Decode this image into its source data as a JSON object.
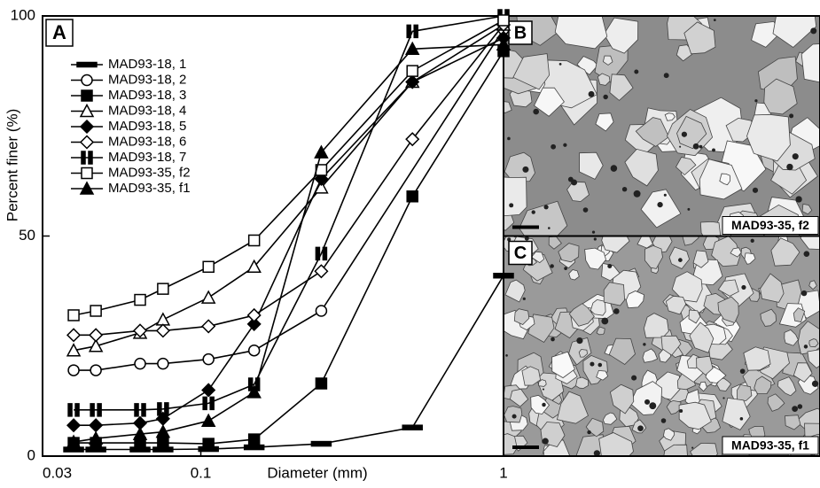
{
  "chart_data": {
    "type": "line",
    "panel_label": "A",
    "xlabel": "Diameter (mm)",
    "ylabel": "Percent finer (%)",
    "xscale": "log",
    "xlim": [
      0.03,
      1
    ],
    "xticks": [
      0.03,
      0.1,
      1
    ],
    "ylim": [
      0,
      100
    ],
    "yticks": [
      0,
      50,
      100
    ],
    "legend": "upper left",
    "series": [
      {
        "name": "MAD93-18, 1",
        "marker": "dash",
        "color": "#000",
        "x": [
          0.038,
          0.045,
          0.063,
          0.075,
          0.106,
          0.15,
          0.25,
          0.5,
          1
        ],
        "values": [
          1.5,
          1.5,
          1.5,
          1.5,
          1.6,
          2,
          2.8,
          6.5,
          41
        ]
      },
      {
        "name": "MAD93-18, 2",
        "marker": "circle-open",
        "color": "#000",
        "x": [
          0.038,
          0.045,
          0.063,
          0.075,
          0.106,
          0.15,
          0.25,
          1
        ],
        "values": [
          19.5,
          19.5,
          21,
          21,
          22,
          24,
          33,
          97
        ]
      },
      {
        "name": "MAD93-18, 3",
        "marker": "square-filled",
        "color": "#000",
        "x": [
          0.038,
          0.045,
          0.063,
          0.075,
          0.106,
          0.15,
          0.25,
          0.5,
          1
        ],
        "values": [
          3,
          3,
          3,
          3,
          2.8,
          3.8,
          16.5,
          59,
          92
        ]
      },
      {
        "name": "MAD93-18, 4",
        "marker": "triangle-open",
        "color": "#000",
        "x": [
          0.038,
          0.045,
          0.063,
          0.075,
          0.106,
          0.15,
          0.25,
          0.5,
          1
        ],
        "values": [
          24,
          25,
          28,
          31,
          36,
          43,
          61,
          85,
          98
        ]
      },
      {
        "name": "MAD93-18, 5",
        "marker": "diamond-filled",
        "color": "#000",
        "x": [
          0.038,
          0.045,
          0.063,
          0.075,
          0.106,
          0.15,
          0.25,
          0.5,
          1
        ],
        "values": [
          7,
          7,
          7.5,
          8.5,
          15,
          30,
          63,
          85,
          95
        ]
      },
      {
        "name": "MAD93-18, 6",
        "marker": "diamond-open",
        "color": "#000",
        "x": [
          0.038,
          0.045,
          0.063,
          0.075,
          0.106,
          0.15,
          0.25,
          0.5,
          1
        ],
        "values": [
          27.5,
          27.5,
          28.5,
          28.5,
          29.5,
          32,
          42,
          72,
          98
        ]
      },
      {
        "name": "MAD93-18, 7",
        "marker": "double-bar",
        "color": "#000",
        "x": [
          0.038,
          0.045,
          0.063,
          0.075,
          0.106,
          0.15,
          0.25,
          0.5,
          1
        ],
        "values": [
          10.5,
          10.5,
          10.5,
          10.7,
          12,
          16.3,
          46,
          96.5,
          100
        ]
      },
      {
        "name": "MAD93-35, f2",
        "marker": "square-open",
        "color": "#000",
        "x": [
          0.038,
          0.045,
          0.063,
          0.075,
          0.106,
          0.15,
          0.25,
          0.5,
          1
        ],
        "values": [
          32,
          33,
          35.5,
          38,
          43,
          49,
          65,
          87.5,
          99
        ]
      },
      {
        "name": "MAD93-35, f1",
        "marker": "triangle-filled",
        "color": "#000",
        "x": [
          0.038,
          0.045,
          0.063,
          0.075,
          0.106,
          0.15,
          0.25,
          0.5,
          1
        ],
        "values": [
          3.2,
          4,
          5,
          5.5,
          8,
          14.5,
          69,
          92.5,
          93.5
        ]
      }
    ]
  },
  "photos": [
    {
      "panel_label": "B",
      "caption": "MAD93-35, f2"
    },
    {
      "panel_label": "C",
      "caption": "MAD93-35, f1"
    }
  ]
}
